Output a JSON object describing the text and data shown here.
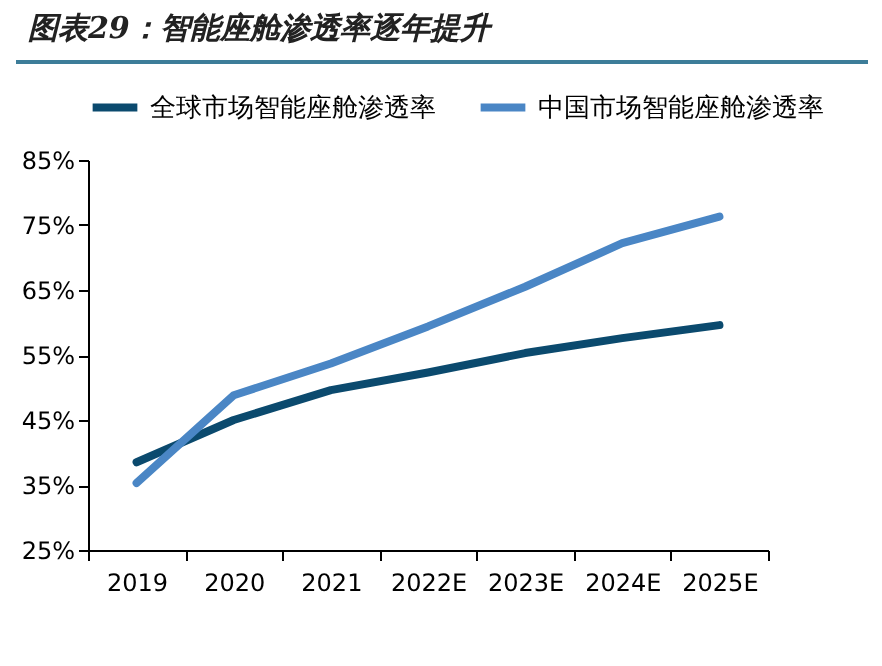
{
  "chart_data": {
    "type": "line",
    "title": "图表29：智能座舱渗透率逐年提升",
    "categories": [
      "2019",
      "2020",
      "2021",
      "2022E",
      "2023E",
      "2024E",
      "2025E"
    ],
    "series": [
      {
        "name": "全球市场智能座舱渗透率",
        "color": "#0b4a6e",
        "values": [
          38.5,
          45,
          49.6,
          52.3,
          55.3,
          57.6,
          59.6
        ]
      },
      {
        "name": "中国市场智能座舱渗透率",
        "color": "#4a86c5",
        "values": [
          35.3,
          48.8,
          53.7,
          59.4,
          65.5,
          72.2,
          76.3
        ]
      }
    ],
    "ylim": [
      25,
      85
    ],
    "yticks": [
      {
        "value": 25,
        "label": "25%"
      },
      {
        "value": 35,
        "label": "35%"
      },
      {
        "value": 45,
        "label": "45%"
      },
      {
        "value": 55,
        "label": "55%"
      },
      {
        "value": 65,
        "label": "65%"
      },
      {
        "value": 75,
        "label": "75%"
      },
      {
        "value": 85,
        "label": "85%"
      }
    ],
    "grid": false,
    "legend": "top",
    "marker": "none",
    "line_style": "solid"
  }
}
